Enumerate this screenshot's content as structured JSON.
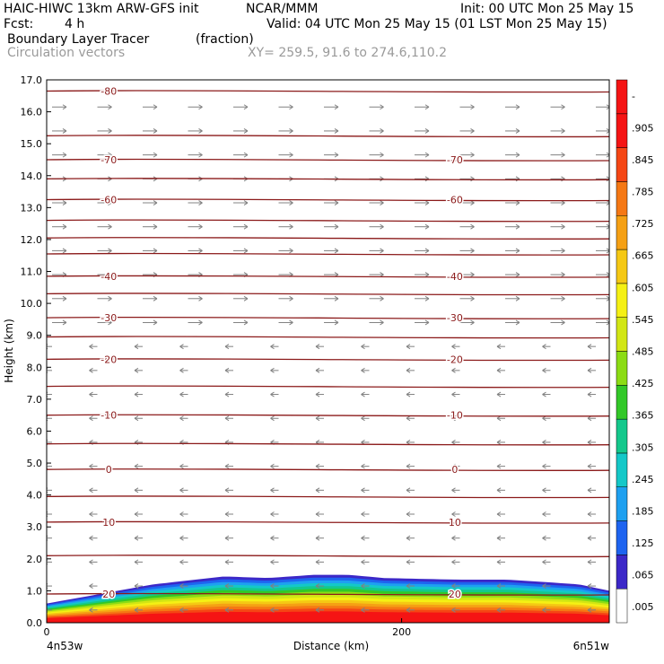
{
  "header": {
    "title_left": "HAIC-HIWC 13km ARW-GFS init",
    "agency": "NCAR/MMM",
    "init": "Init: 00 UTC Mon 25 May 15",
    "fcst_label": "Fcst:",
    "fcst_value": "4 h",
    "valid": "Valid: 04 UTC Mon 25 May 15 (01 LST Mon 25 May 15)",
    "field_name": "Boundary Layer Tracer",
    "field_units": "(fraction)",
    "vectors_label": "Circulation vectors",
    "xy_label": "XY= 259.5, 91.6 to 274.6,110.2"
  },
  "colors": {
    "contour": "#8b1a1a",
    "vector": "#808080",
    "colorbar": [
      "#ffffff",
      "#3c28c8",
      "#1e64f0",
      "#1ea0f0",
      "#14c8c8",
      "#14c88c",
      "#32c828",
      "#8cdc14",
      "#d2e614",
      "#f5f014",
      "#f5c814",
      "#f5a014",
      "#f57814",
      "#f54614",
      "#f51414",
      "#f51414"
    ]
  },
  "chart_data": {
    "type": "heatmap",
    "xlabel": "Distance (km)",
    "ylabel": "Height (km)",
    "xlim": [
      0,
      317
    ],
    "ylim": [
      0,
      17
    ],
    "x_ticks": [
      "0",
      "200"
    ],
    "x_end_labels": [
      "4n53w",
      "6n51w"
    ],
    "y_ticks": [
      "0.0",
      "1.0",
      "2.0",
      "3.0",
      "4.0",
      "5.0",
      "6.0",
      "7.0",
      "8.0",
      "9.0",
      "10.0",
      "11.0",
      "12.0",
      "13.0",
      "14.0",
      "15.0",
      "16.0",
      "17.0"
    ],
    "colorbar_labels": [
      "-",
      ".905",
      ".845",
      ".785",
      ".725",
      ".665",
      ".605",
      ".545",
      ".485",
      ".425",
      ".365",
      ".305",
      ".245",
      ".185",
      ".125",
      ".065",
      ".005"
    ],
    "tracer_layer": {
      "x": [
        0,
        30,
        60,
        100,
        125,
        150,
        170,
        190,
        230,
        260,
        300,
        317
      ],
      "top_km": [
        0.6,
        0.9,
        1.2,
        1.45,
        1.4,
        1.5,
        1.5,
        1.4,
        1.35,
        1.35,
        1.2,
        1.0
      ],
      "peak_fraction": 0.95
    },
    "isotherms": [
      {
        "label": "-80",
        "height_km": 16.65
      },
      {
        "label": "-70",
        "height_km": 14.5
      },
      {
        "label": "-60",
        "height_km": 13.25
      },
      {
        "label": "-40",
        "height_km": 10.85
      },
      {
        "label": "-30",
        "height_km": 9.55
      },
      {
        "label": "-20",
        "height_km": 8.25
      },
      {
        "label": "-10",
        "height_km": 6.5
      },
      {
        "label": "0",
        "height_km": 4.8
      },
      {
        "label": "10",
        "height_km": 3.15
      },
      {
        "label": "20",
        "height_km": 0.9
      }
    ],
    "unlabeled_contour_heights_km": [
      15.25,
      13.9,
      12.6,
      12.05,
      11.55,
      10.3,
      8.95,
      7.4,
      5.6,
      3.95,
      2.1
    ]
  }
}
